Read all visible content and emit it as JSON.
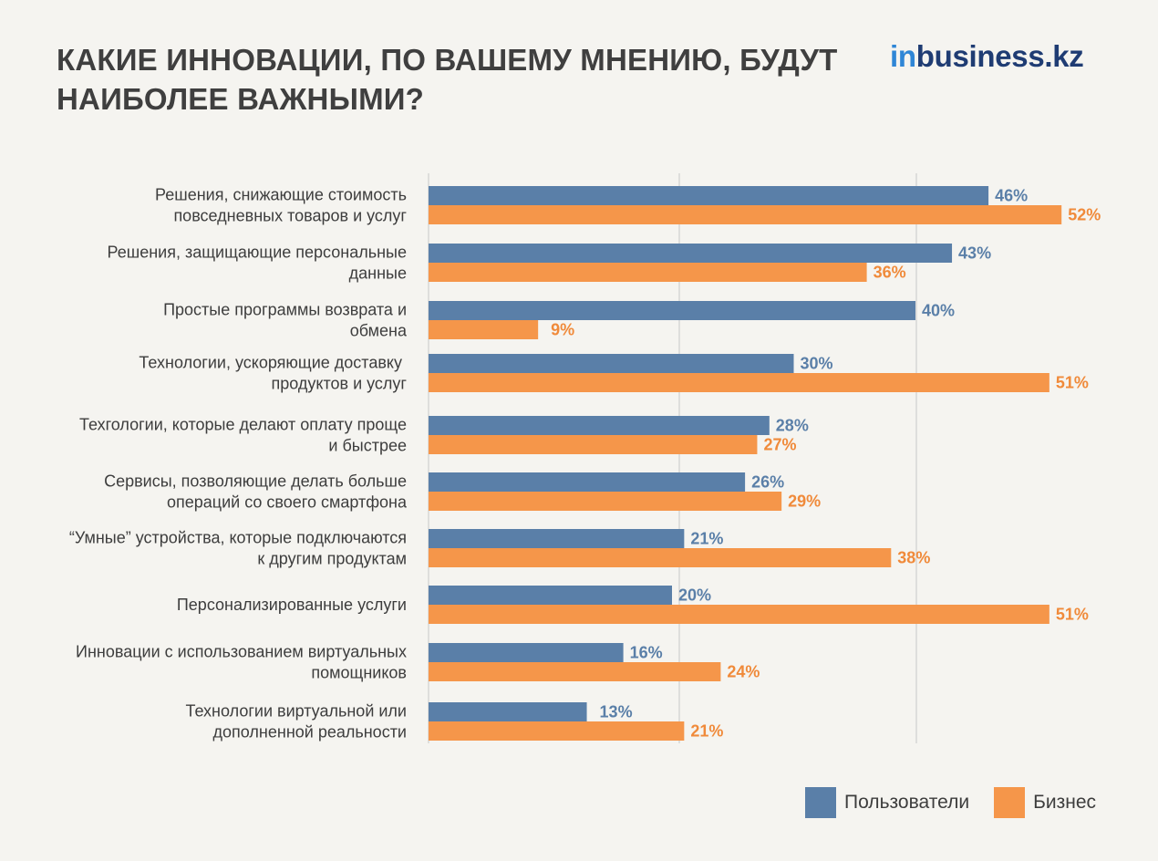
{
  "header": {
    "title_line1": "КАКИЕ ИННОВАЦИИ, ПО ВАШЕМУ МНЕНИЮ, БУДУТ",
    "title_line2": "НАИБОЛЕЕ ВАЖНЫМИ?",
    "logo_in": "in",
    "logo_rest": "business.kz"
  },
  "colors": {
    "users": "#5a7fa8",
    "business": "#f5964a",
    "users_text": "#5a7fa8",
    "business_text": "#f08a3a",
    "gridline": "#c8c8c8",
    "background": "#f5f4f0"
  },
  "chart_data": {
    "type": "bar",
    "orientation": "horizontal",
    "categories": [
      [
        "Решения, снижающие стоимость",
        "повседневных товаров и услуг"
      ],
      [
        "Решения, защищающие персональные",
        "данные"
      ],
      [
        "Простые программы возврата и",
        "обмена"
      ],
      [
        "Технологии, ускоряющие доставку ",
        "продуктов и услуг"
      ],
      [
        "Техгологии, которые делают оплату проще",
        "и быстрее"
      ],
      [
        "Сервисы, позволяющие делать больше",
        "операций со своего смартфона"
      ],
      [
        "“Умные” устройства, которые подключаются",
        "к другим продуктам"
      ],
      [
        "Персонализированные услуги"
      ],
      [
        "Инновации с использованием виртуальных",
        "помощников"
      ],
      [
        "Технологии виртуальной или",
        "дополненной реальности"
      ]
    ],
    "series": [
      {
        "name": "Пользователи",
        "values": [
          46,
          43,
          40,
          30,
          28,
          26,
          21,
          20,
          16,
          13
        ],
        "labels": [
          "46%",
          "43%",
          "40%",
          "30%",
          "28%",
          "26%",
          "21%",
          "20%",
          "16%",
          "13%"
        ]
      },
      {
        "name": "Бизнес",
        "values": [
          52,
          36,
          9,
          51,
          27,
          29,
          38,
          51,
          24,
          21
        ],
        "labels": [
          "52%",
          "36%",
          "9%",
          "51%",
          "27%",
          "29%",
          "38%",
          "51%",
          "24%",
          "21%"
        ]
      }
    ],
    "xlim": [
      0,
      52
    ],
    "grid": "vertical",
    "legend_position": "bottom-right"
  },
  "legend": {
    "users_label": "Пользователи",
    "business_label": "Бизнес"
  }
}
